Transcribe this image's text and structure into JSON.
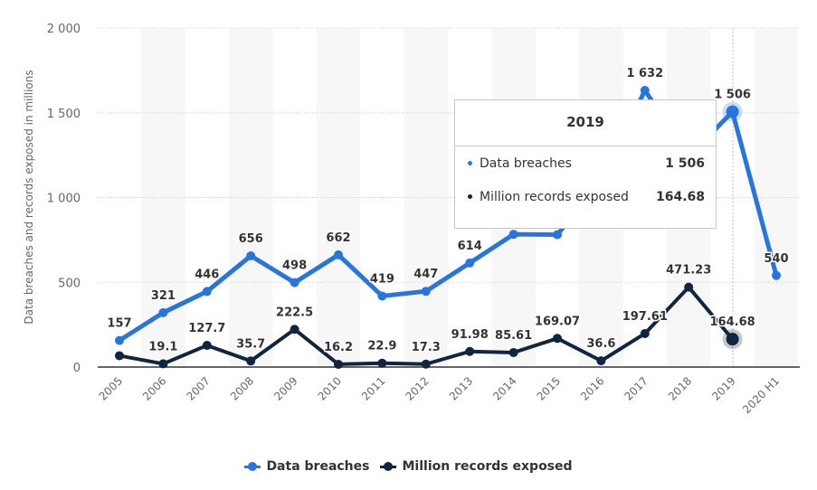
{
  "chart_data": {
    "type": "line",
    "title": "",
    "xlabel": "",
    "ylabel": "Data breaches and records exposed in millions",
    "ylim": [
      0,
      2000
    ],
    "yticks": [
      0,
      500,
      1000,
      1500,
      2000
    ],
    "ytick_labels": [
      "0",
      "500",
      "1 000",
      "1 500",
      "2 000"
    ],
    "grid": true,
    "legend_position": "bottom",
    "categories": [
      "2005",
      "2006",
      "2007",
      "2008",
      "2009",
      "2010",
      "2011",
      "2012",
      "2013",
      "2014",
      "2015",
      "2016",
      "2017",
      "2018",
      "2019",
      "2020 H1"
    ],
    "series": [
      {
        "name": "Data breaches",
        "color": "#2876dd",
        "values": [
          157,
          321,
          446,
          656,
          498,
          662,
          419,
          447,
          614,
          783,
          781,
          1093,
          1632,
          1244,
          1506,
          540
        ],
        "labels": [
          "157",
          "321",
          "446",
          "656",
          "498",
          "662",
          "419",
          "447",
          "614",
          "",
          "",
          "",
          "1 632",
          "",
          "1 506",
          "540"
        ]
      },
      {
        "name": "Million records exposed",
        "color": "#0f2540",
        "values": [
          66.9,
          19.1,
          127.7,
          35.7,
          222.5,
          16.2,
          22.9,
          17.3,
          91.98,
          85.61,
          169.07,
          36.6,
          197.61,
          471.23,
          164.68,
          null
        ],
        "labels": [
          "",
          "19.1",
          "127.7",
          "35.7",
          "222.5",
          "16.2",
          "22.9",
          "17.3",
          "91.98",
          "85.61",
          "169.07",
          "36.6",
          "197.61",
          "471.23",
          "164.68",
          ""
        ]
      }
    ],
    "highlighted_category": "2019"
  },
  "tooltip": {
    "title": "2019",
    "rows": [
      {
        "name": "Data breaches",
        "value": "1 506",
        "color": "#2876dd"
      },
      {
        "name": "Million records exposed",
        "value": "164.68",
        "color": "#0f2540"
      }
    ]
  },
  "legend": {
    "items": [
      {
        "label": "Data breaches",
        "color": "#2876dd"
      },
      {
        "label": "Million records exposed",
        "color": "#0f2540"
      }
    ]
  }
}
